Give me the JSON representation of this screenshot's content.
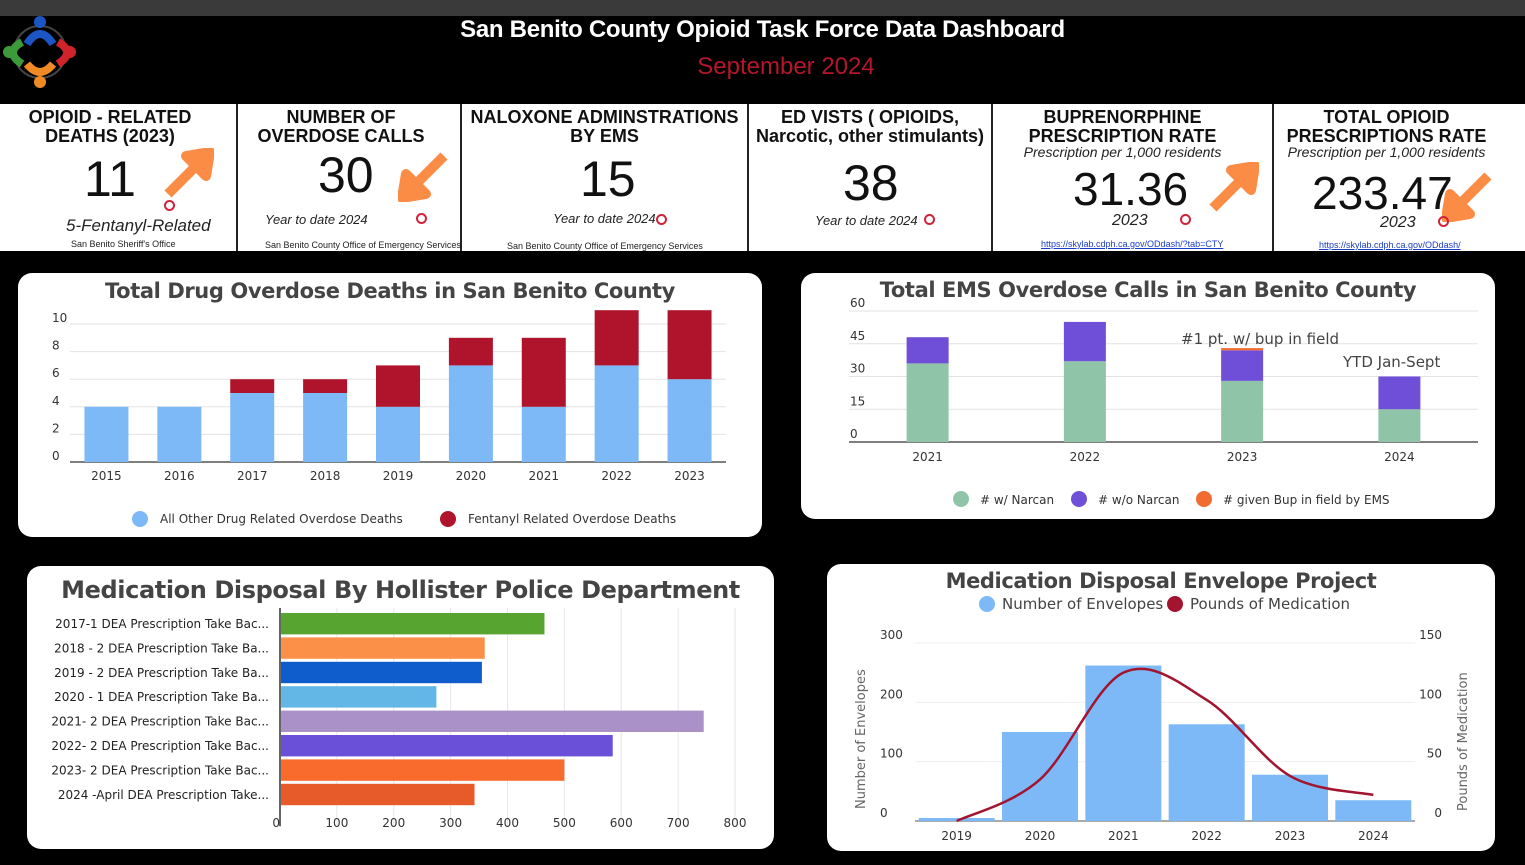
{
  "header": {
    "title": "San Benito County Opioid Task Force Data Dashboard",
    "subtitle": "September  2024"
  },
  "kpis": {
    "deaths": {
      "label": "OPIOID - RELATED DEATHS (2023)",
      "value": "11",
      "note": "5-Fentanyl-Related",
      "source": "San Benito Sheriff's Office",
      "trend": "up"
    },
    "overdose_calls": {
      "label": "NUMBER OF OVERDOSE CALLS",
      "value": "30",
      "note": "Year to date 2024",
      "source": "San Benito County Office of Emergency Services",
      "trend": "down"
    },
    "naloxone": {
      "label": "NALOXONE ADMINSTRATIONS BY EMS",
      "value": "15",
      "note": "Year to date 2024",
      "source": "San Benito County Office of Emergency Services"
    },
    "ed_visits": {
      "label": "ED VISTS ( OPIOIDS, Narcotic, other stimulants)",
      "value": "38",
      "note": "Year to date 2024"
    },
    "buprenorphine": {
      "label": "BUPRENORPHINE PRESCRIPTION RATE",
      "sublabel": "Prescription per 1,000 residents",
      "value": "31.36",
      "note": "2023",
      "link": "https://skylab.cdph.ca.gov/ODdash/?tab=CTY",
      "trend": "up"
    },
    "total_opioid": {
      "label": "TOTAL OPIOID PRESCRIPTIONS RATE",
      "sublabel": "Prescription per 1,000 residents",
      "value": "233.47",
      "note": "2023",
      "link": "https://skylab.cdph.ca.gov/ODdash/",
      "trend": "down"
    }
  },
  "chart_data": [
    {
      "id": "overdose_deaths",
      "type": "bar",
      "stacked": true,
      "title": "Total Drug Overdose Deaths in San Benito County",
      "categories": [
        "2015",
        "2016",
        "2017",
        "2018",
        "2019",
        "2020",
        "2021",
        "2022",
        "2023"
      ],
      "series": [
        {
          "name": "All Other Drug Related Overdose Deaths",
          "color": "#7db9f7",
          "values": [
            4,
            4,
            5,
            5,
            4,
            7,
            4,
            7,
            6
          ]
        },
        {
          "name": "Fentanyl Related Overdose Deaths",
          "color": "#b0142d",
          "values": [
            0,
            0,
            1,
            1,
            3,
            2,
            5,
            4,
            5
          ]
        }
      ],
      "yticks": [
        0,
        2,
        4,
        6,
        8,
        10
      ],
      "ylim": [
        0,
        10
      ],
      "grid": true,
      "legend": "bottom"
    },
    {
      "id": "ems_calls",
      "type": "bar",
      "stacked": true,
      "title": "Total EMS Overdose Calls in San Benito County",
      "categories": [
        "2021",
        "2022",
        "2023",
        "2024"
      ],
      "series": [
        {
          "name": "# w/ Narcan",
          "color": "#8fc4a8",
          "values": [
            36,
            37,
            28,
            15
          ]
        },
        {
          "name": "# w/o Narcan",
          "color": "#6f4fd8",
          "values": [
            12,
            18,
            14,
            15
          ]
        },
        {
          "name": "# given Bup in field by EMS",
          "color": "#f26b2f",
          "values": [
            0,
            0,
            1,
            0
          ]
        }
      ],
      "annotations": [
        "#1 pt. w/ bup in field",
        "YTD Jan-Sept"
      ],
      "yticks": [
        0,
        15,
        30,
        45,
        60
      ],
      "ylim": [
        0,
        60
      ],
      "grid": true,
      "legend": "bottom"
    },
    {
      "id": "hpd_disposal",
      "type": "bar",
      "orientation": "horizontal",
      "title": "Medication Disposal By Hollister Police Department",
      "categories": [
        "2017-1 DEA Prescription Take Bac...",
        "2018 - 2 DEA Prescription Take Ba...",
        "2019 - 2 DEA Prescription Take Ba...",
        "2020 - 1 DEA Prescription Take Ba...",
        "2021- 2 DEA Prescription Take Bac...",
        "2022- 2 DEA Prescription Take Bac...",
        "2023- 2 DEA Prescription Take Bac...",
        "2024 -April DEA Prescription Take..."
      ],
      "values": [
        465,
        360,
        355,
        275,
        745,
        585,
        500,
        342
      ],
      "colors": [
        "#57a431",
        "#fb9148",
        "#0f5ccc",
        "#63b7e6",
        "#aa92c9",
        "#6a4fd8",
        "#f96b2d",
        "#e75a2a"
      ],
      "xticks": [
        0,
        100,
        200,
        300,
        400,
        500,
        600,
        700,
        800
      ],
      "xlim": [
        0,
        800
      ],
      "grid": true
    },
    {
      "id": "envelope_project",
      "type": "bar",
      "title": "Medication Disposal Envelope Project",
      "categories": [
        "2019",
        "2020",
        "2021",
        "2022",
        "2023",
        "2024"
      ],
      "series": [
        {
          "name": "Number of Envelopes",
          "type": "bar",
          "axis": "left",
          "color": "#7db9f7",
          "values": [
            5,
            150,
            262,
            163,
            78,
            35
          ]
        },
        {
          "name": "Pounds of Medication",
          "type": "line",
          "axis": "right",
          "color": "#a3142e",
          "values": [
            0,
            35,
            125,
            102,
            38,
            22
          ]
        }
      ],
      "ylabel": "Number of Envelopes",
      "y2label": "Pounds of Medication",
      "yticks": [
        0,
        100,
        200,
        300
      ],
      "y2ticks": [
        0,
        50,
        100,
        150
      ],
      "ylim": [
        0,
        300
      ],
      "y2lim": [
        0,
        150
      ],
      "legend": "top"
    }
  ]
}
